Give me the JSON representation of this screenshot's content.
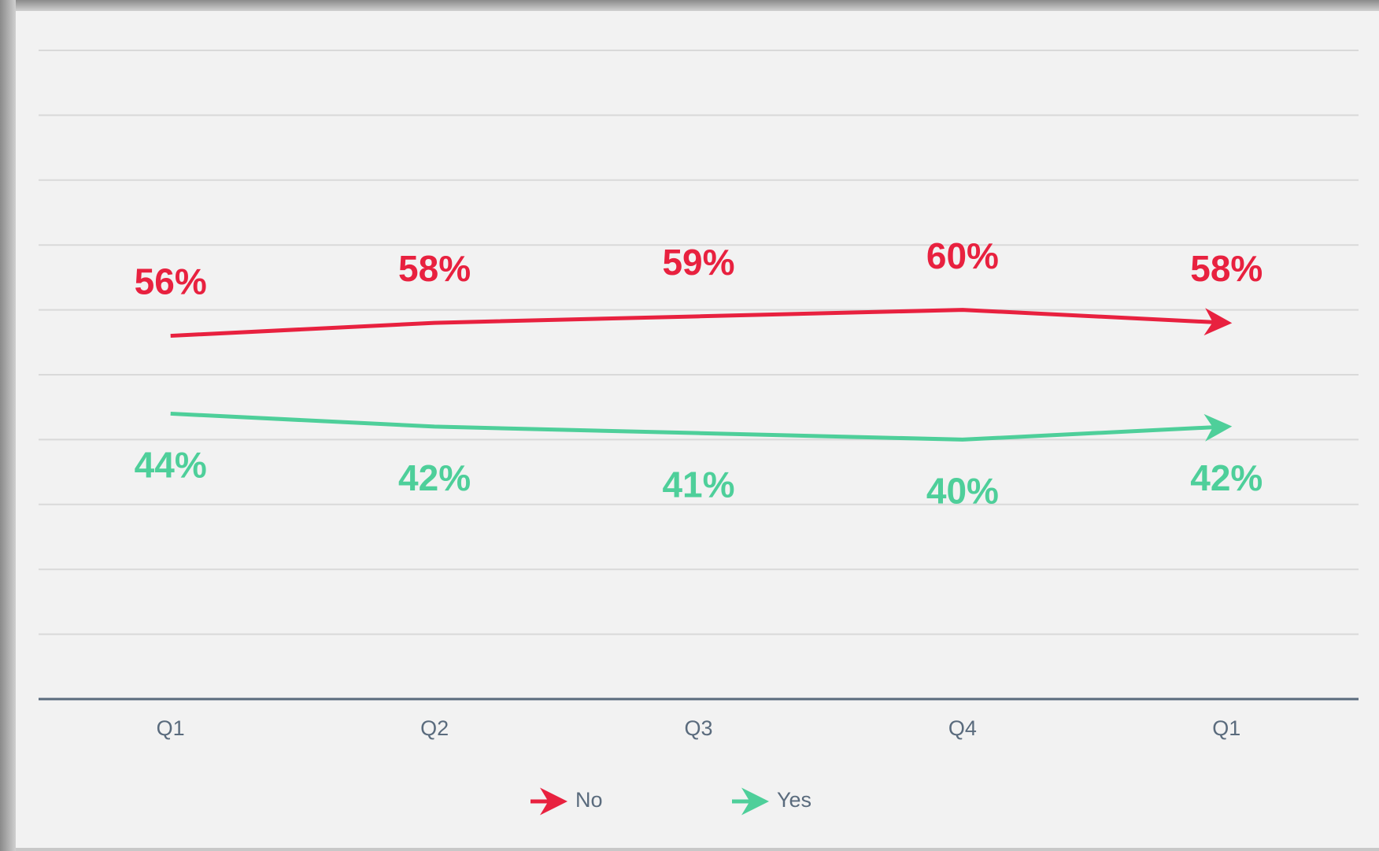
{
  "chart_data": {
    "type": "line",
    "categories": [
      "Q1",
      "Q2",
      "Q3",
      "Q4",
      "Q1"
    ],
    "series": [
      {
        "name": "No",
        "color": "#e8213f",
        "values": [
          56,
          58,
          59,
          60,
          58
        ],
        "value_labels": [
          "56%",
          "58%",
          "59%",
          "60%",
          "58%"
        ],
        "label_position": "above"
      },
      {
        "name": "Yes",
        "color": "#4ecf9a",
        "values": [
          44,
          42,
          41,
          40,
          42
        ],
        "value_labels": [
          "44%",
          "42%",
          "41%",
          "40%",
          "42%"
        ],
        "label_position": "below"
      }
    ],
    "ylim": [
      0,
      100
    ],
    "yticks": [
      0,
      10,
      20,
      30,
      40,
      50,
      60,
      70,
      80,
      90,
      100
    ],
    "grid": true,
    "legend": "bottom"
  }
}
